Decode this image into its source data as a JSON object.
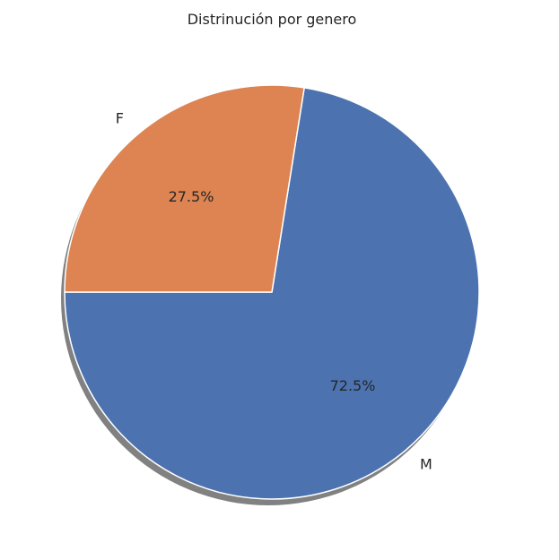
{
  "chart_data": {
    "type": "pie",
    "title": "Distrinución por genero",
    "labels": [
      "M",
      "F"
    ],
    "values": [
      72.5,
      27.5
    ],
    "percent_labels": [
      "72.5%",
      "27.5%"
    ],
    "colors": [
      "#4c72b0",
      "#dd8452"
    ],
    "start_angle_deg": 180,
    "direction": "counterclockwise",
    "shadow": true
  }
}
